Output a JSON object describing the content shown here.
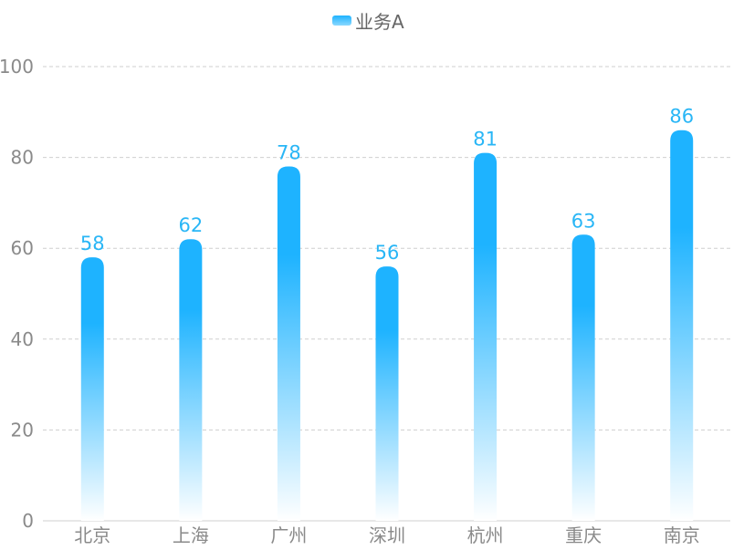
{
  "legend": {
    "label": "业务A"
  },
  "colors": {
    "bar_top": "#1eb3ff",
    "bar_bottom": "#ffffff",
    "value_label": "#29b6f6",
    "legend_swatch": "#1eb3ff"
  },
  "chart_data": {
    "type": "bar",
    "categories": [
      "北京",
      "上海",
      "广州",
      "深圳",
      "杭州",
      "重庆",
      "南京"
    ],
    "series": [
      {
        "name": "业务A",
        "values": [
          58,
          62,
          78,
          56,
          81,
          63,
          86
        ]
      }
    ],
    "yticks": [
      "0",
      "20",
      "40",
      "60",
      "80",
      "100"
    ],
    "ylim": [
      0,
      100
    ],
    "grid": true,
    "legend_position": "top-center",
    "title": "",
    "xlabel": "",
    "ylabel": ""
  }
}
